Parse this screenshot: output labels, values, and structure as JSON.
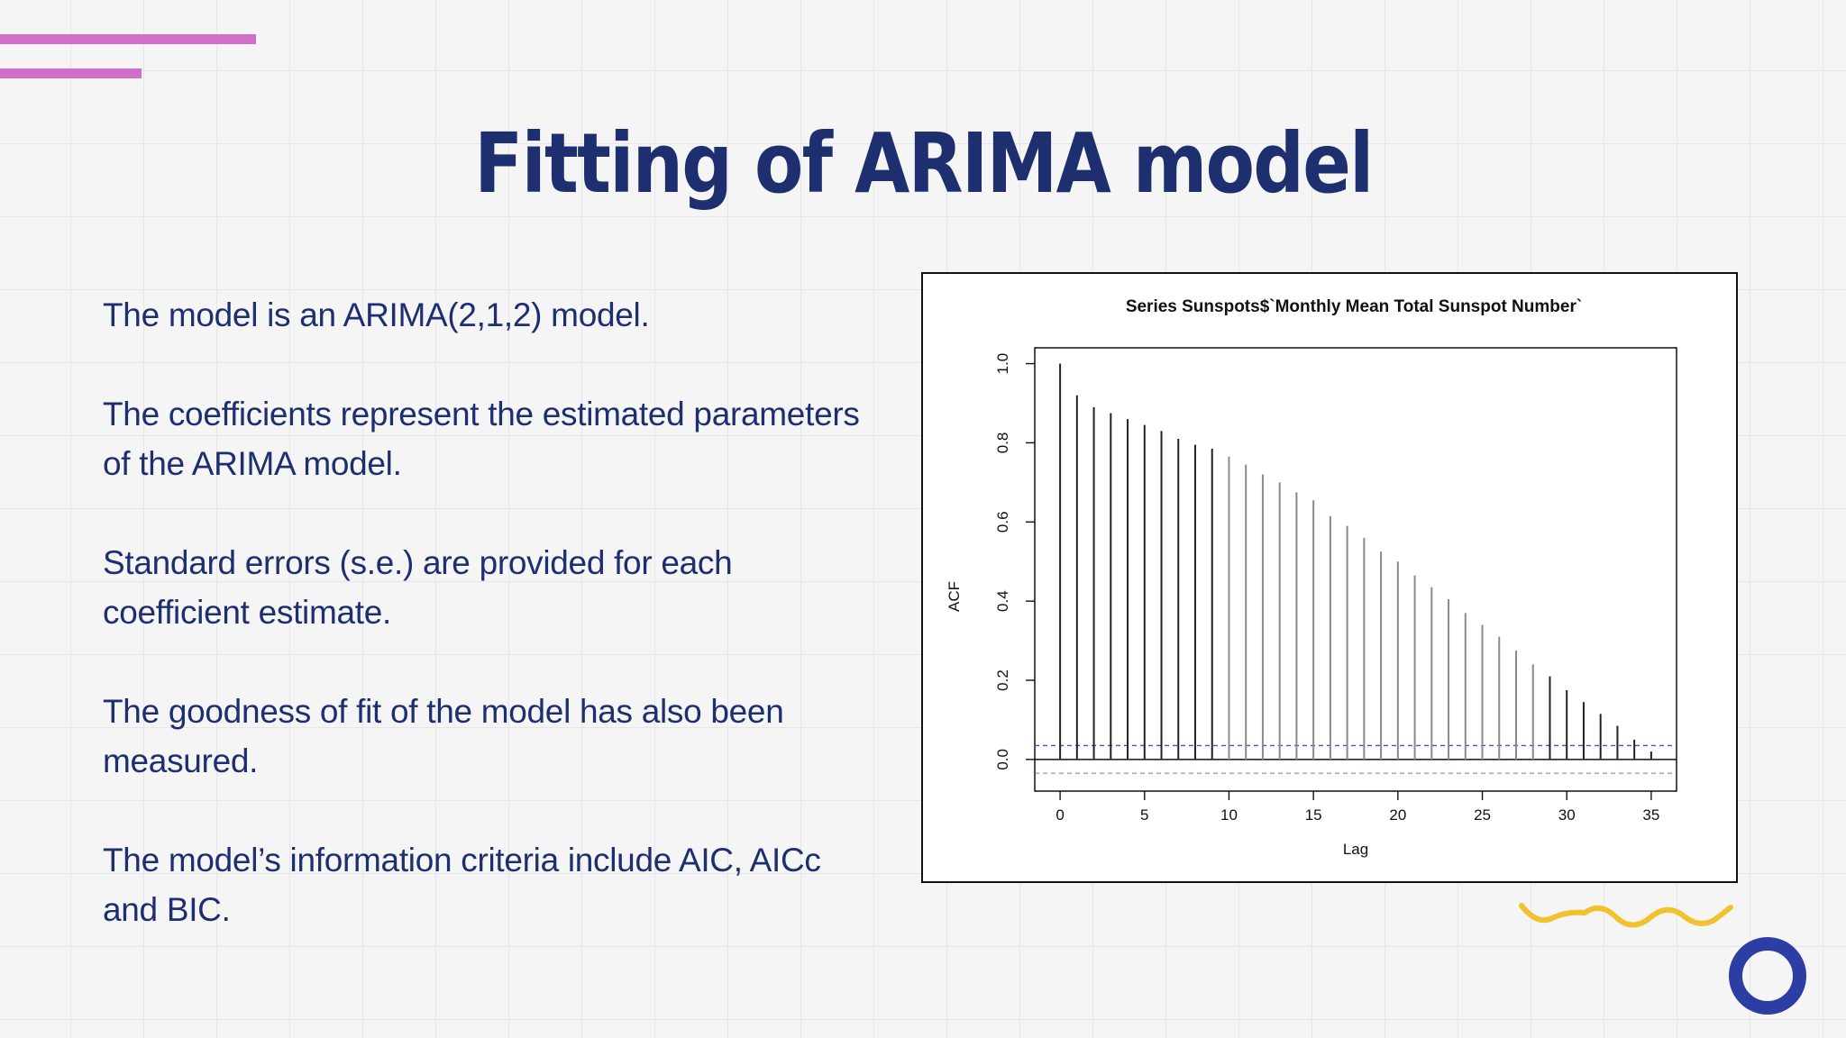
{
  "slide": {
    "title": "Fitting of ARIMA model",
    "bullets": [
      "The model is an ARIMA(2,1,2) model.",
      "The coefficients represent the estimated parameters of the ARIMA model.",
      "Standard errors (s.e.) are provided for each coefficient estimate.",
      "The goodness of fit of the model has also been measured.",
      "The model’s information criteria include AIC, AICc and BIC."
    ]
  },
  "colors": {
    "title": "#1d2f6f",
    "accent_bars": "#cf6fc7",
    "squiggle": "#f2c12e",
    "ring": "#2c3ea3",
    "confidence_band": "#4a4ad0"
  },
  "decor": {
    "bars_icon": "double-bar-decoration",
    "squiggle_icon": "wavy-line-decoration",
    "ring_icon": "ring-decoration"
  },
  "chart_data": {
    "type": "bar",
    "title": "Series  Sunspots$`Monthly Mean Total Sunspot Number`",
    "xlabel": "Lag",
    "ylabel": "ACF",
    "xlim": [
      -1.5,
      36.5
    ],
    "ylim": [
      -0.08,
      1.04
    ],
    "xticks": [
      0,
      5,
      10,
      15,
      20,
      25,
      30,
      35
    ],
    "xtick_labels": [
      "0",
      "5",
      "10",
      "15",
      "20",
      "25",
      "30",
      "35"
    ],
    "yticks": [
      0.0,
      0.2,
      0.4,
      0.6,
      0.8,
      1.0
    ],
    "ytick_labels": [
      "0.0",
      "0.2",
      "0.4",
      "0.6",
      "0.8",
      "1.0"
    ],
    "confidence_bound": 0.035,
    "grid": false,
    "series": [
      {
        "lags": [
          0,
          1,
          2,
          3,
          4,
          5,
          6,
          7,
          8,
          9,
          10,
          11,
          12,
          13,
          14,
          15,
          16,
          17,
          18,
          19,
          20,
          21,
          22,
          23,
          24,
          25,
          26,
          27,
          28,
          29,
          30,
          31,
          32,
          33,
          34,
          35
        ],
        "values": [
          1.0,
          0.92,
          0.89,
          0.875,
          0.86,
          0.845,
          0.83,
          0.81,
          0.795,
          0.785,
          0.765,
          0.745,
          0.72,
          0.7,
          0.675,
          0.655,
          0.615,
          0.59,
          0.56,
          0.525,
          0.5,
          0.465,
          0.435,
          0.405,
          0.37,
          0.34,
          0.31,
          0.275,
          0.24,
          0.21,
          0.175,
          0.145,
          0.115,
          0.085,
          0.05,
          0.02
        ]
      }
    ]
  }
}
